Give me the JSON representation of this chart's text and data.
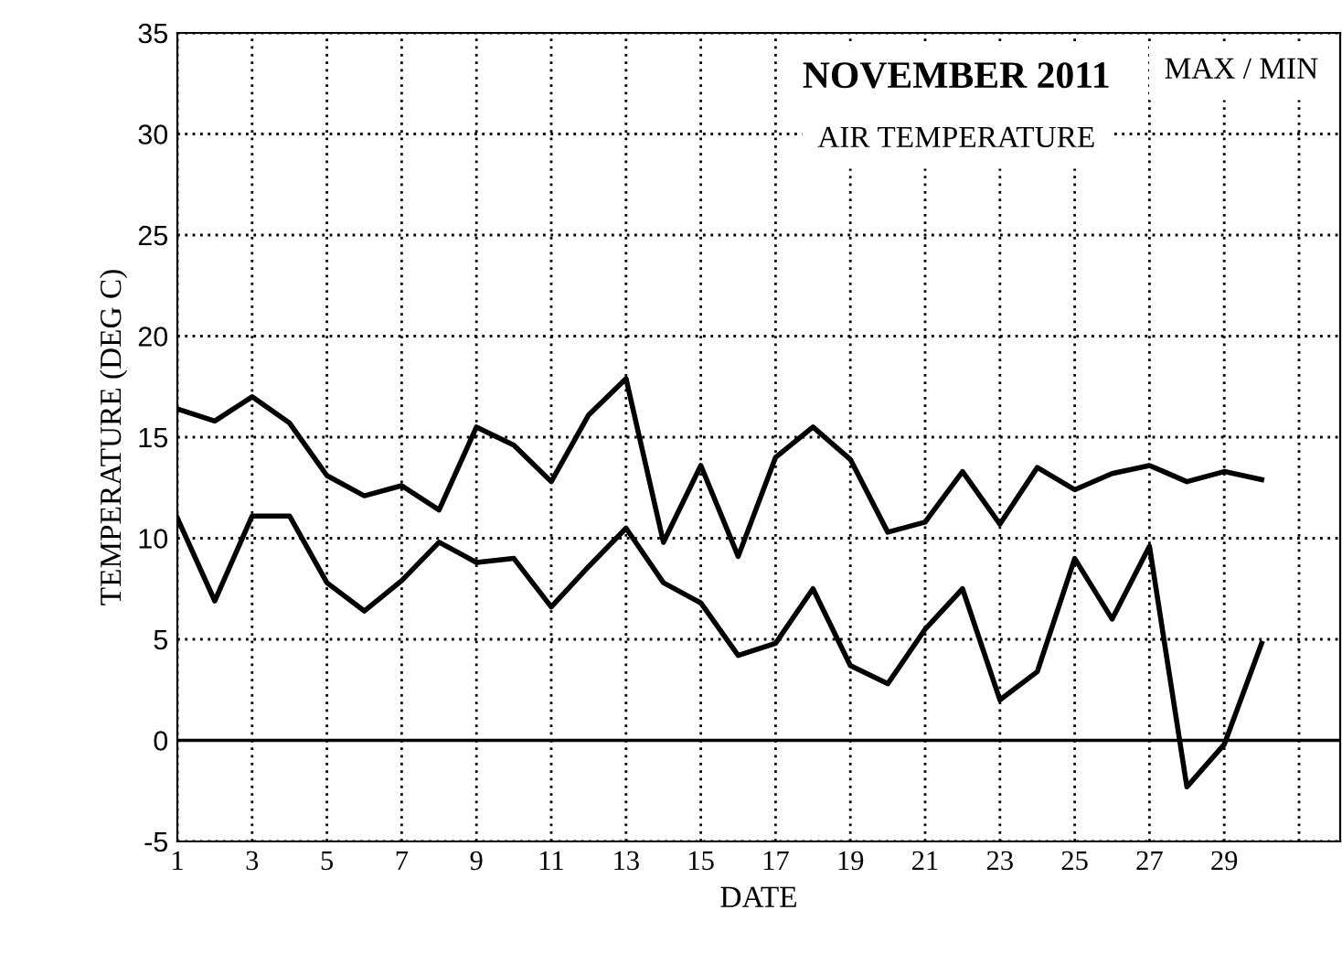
{
  "chart_data": {
    "type": "line",
    "title": "NOVEMBER 2011",
    "subtitle": "AIR TEMPERATURE",
    "annotations": [
      "MAX / MIN"
    ],
    "xlabel": "DATE",
    "ylabel": "TEMPERATURE (DEG C)",
    "x": [
      1,
      2,
      3,
      4,
      5,
      6,
      7,
      8,
      9,
      10,
      11,
      12,
      13,
      14,
      15,
      16,
      17,
      18,
      19,
      20,
      21,
      22,
      23,
      24,
      25,
      26,
      27,
      28,
      29,
      30
    ],
    "series": [
      {
        "color": "#000000",
        "values": [
          16.4,
          15.8,
          17.0,
          15.7,
          13.1,
          12.1,
          12.6,
          11.4,
          15.5,
          14.6,
          12.8,
          16.1,
          17.9,
          9.8,
          13.6,
          9.1,
          14.0,
          15.5,
          13.9,
          10.3,
          10.8,
          13.3,
          10.7,
          13.5,
          12.4,
          13.2,
          13.6,
          12.8,
          13.3,
          12.9
        ]
      },
      {
        "color": "#000000",
        "values": [
          11.0,
          6.9,
          11.1,
          11.1,
          7.8,
          6.4,
          7.9,
          9.8,
          8.8,
          9.0,
          6.6,
          8.6,
          10.5,
          7.8,
          6.8,
          4.2,
          4.8,
          7.5,
          3.7,
          2.8,
          5.5,
          7.5,
          2.0,
          3.4,
          9.0,
          6.0,
          9.6,
          -2.3,
          -0.2,
          4.8
        ]
      }
    ],
    "xlim": [
      1,
      32.1
    ],
    "xticks": [
      1,
      3,
      5,
      7,
      9,
      11,
      13,
      15,
      17,
      19,
      21,
      23,
      25,
      27,
      29,
      {
        "value": 31,
        "label": null
      }
    ],
    "ylim": [
      -5,
      35
    ],
    "yticks": [
      -5,
      0,
      5,
      10,
      15,
      20,
      25,
      30,
      35
    ],
    "ref_lines": [
      {
        "axis": "y",
        "value": 0,
        "color": "#000000",
        "line_style": "solid"
      }
    ],
    "grid": true,
    "legend": false,
    "marker": "none",
    "line_style": "solid"
  }
}
